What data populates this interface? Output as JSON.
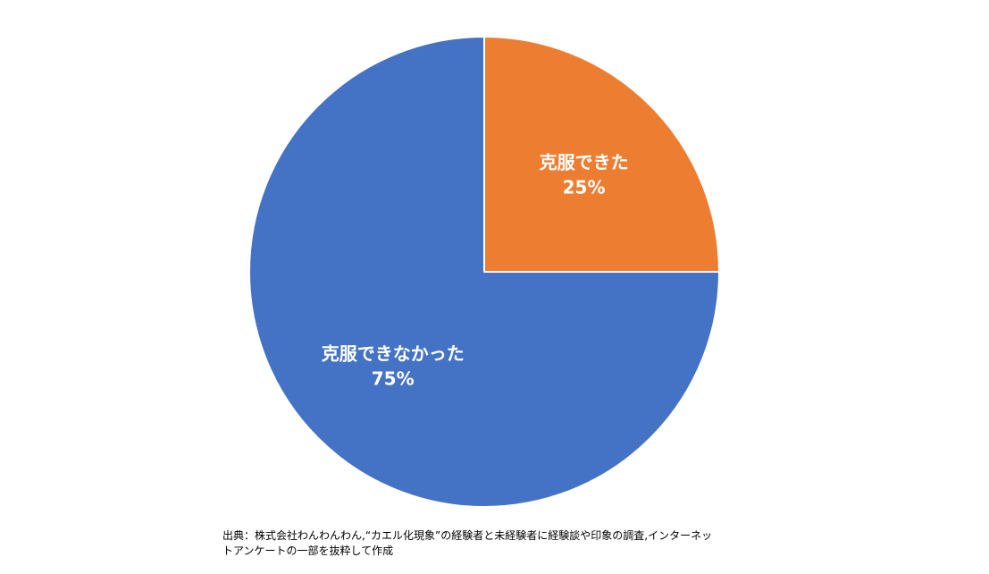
{
  "chart_data": {
    "type": "pie",
    "slices": [
      {
        "label": "克服できた",
        "value": 25,
        "value_label": "25%",
        "color": "#ED7D31"
      },
      {
        "label": "克服できなかった",
        "value": 75,
        "value_label": "75%",
        "color": "#4472C4"
      }
    ],
    "start": "12 o'clock, clockwise",
    "legend": "none",
    "title": ""
  },
  "source": {
    "line1": "出典：株式会社わんわんわん,“カエル化現象”の経験者と未経験者に経験談や印象の調査,インターネッ",
    "line2": "トアンケートの一部を抜粋して作成"
  }
}
